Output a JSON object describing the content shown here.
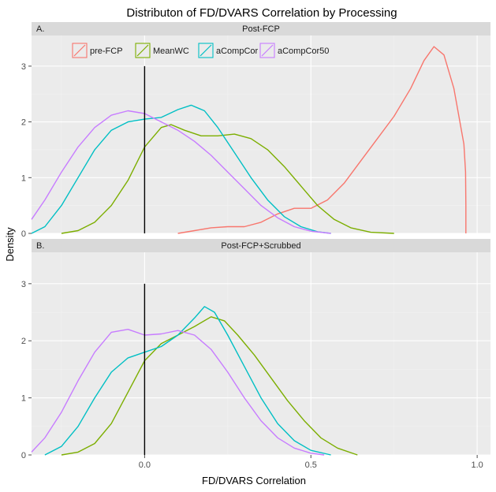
{
  "chart_data": {
    "type": "line",
    "title": "Distributon of FD/DVARS Correlation by Processing",
    "xlabel": "FD/DVARS Correlation",
    "ylabel": "Density",
    "xlim": [
      -0.34,
      1.04
    ],
    "ylim": [
      0,
      3.55
    ],
    "xticks": [
      0.0,
      0.5,
      1.0
    ],
    "xtick_labels": [
      "0.0",
      "0.5",
      "1.0"
    ],
    "yticks": [
      0,
      1,
      2,
      3
    ],
    "ytick_labels": [
      "0",
      "1",
      "2",
      "3"
    ],
    "vline_x": 0,
    "grid": true,
    "legend": {
      "placement": "top-left inside panel A",
      "entries": [
        "pre-FCP",
        "MeanWC",
        "aCompCor",
        "aCompCor50"
      ]
    },
    "colors": {
      "pre-FCP": "#F8766D",
      "MeanWC": "#7CAE00",
      "aCompCor": "#00BFC4",
      "aCompCor50": "#C77CFF",
      "panel_bg": "#EBEBEB",
      "strip_bg": "#D9D9D9",
      "grid": "#FFFFFF"
    },
    "panels": [
      {
        "letter": "A.",
        "label": "Post-FCP",
        "series": [
          {
            "name": "pre-FCP",
            "points": [
              [
                0.1,
                0
              ],
              [
                0.15,
                0.05
              ],
              [
                0.2,
                0.1
              ],
              [
                0.25,
                0.12
              ],
              [
                0.3,
                0.12
              ],
              [
                0.35,
                0.2
              ],
              [
                0.4,
                0.35
              ],
              [
                0.45,
                0.45
              ],
              [
                0.5,
                0.45
              ],
              [
                0.55,
                0.6
              ],
              [
                0.6,
                0.9
              ],
              [
                0.65,
                1.3
              ],
              [
                0.7,
                1.7
              ],
              [
                0.75,
                2.1
              ],
              [
                0.8,
                2.6
              ],
              [
                0.84,
                3.1
              ],
              [
                0.87,
                3.35
              ],
              [
                0.9,
                3.2
              ],
              [
                0.93,
                2.6
              ],
              [
                0.96,
                1.6
              ],
              [
                0.965,
                1.1
              ],
              [
                0.966,
                0.5
              ],
              [
                0.966,
                0
              ]
            ]
          },
          {
            "name": "MeanWC",
            "points": [
              [
                -0.25,
                0
              ],
              [
                -0.2,
                0.05
              ],
              [
                -0.15,
                0.2
              ],
              [
                -0.1,
                0.5
              ],
              [
                -0.05,
                0.95
              ],
              [
                0,
                1.55
              ],
              [
                0.05,
                1.9
              ],
              [
                0.08,
                1.95
              ],
              [
                0.12,
                1.85
              ],
              [
                0.17,
                1.75
              ],
              [
                0.22,
                1.75
              ],
              [
                0.27,
                1.78
              ],
              [
                0.32,
                1.7
              ],
              [
                0.37,
                1.5
              ],
              [
                0.42,
                1.2
              ],
              [
                0.47,
                0.85
              ],
              [
                0.52,
                0.5
              ],
              [
                0.57,
                0.25
              ],
              [
                0.62,
                0.1
              ],
              [
                0.68,
                0.02
              ],
              [
                0.75,
                0
              ]
            ]
          },
          {
            "name": "aCompCor",
            "points": [
              [
                -0.34,
                0
              ],
              [
                -0.3,
                0.12
              ],
              [
                -0.25,
                0.5
              ],
              [
                -0.2,
                1.0
              ],
              [
                -0.15,
                1.5
              ],
              [
                -0.1,
                1.85
              ],
              [
                -0.05,
                2.0
              ],
              [
                0,
                2.05
              ],
              [
                0.05,
                2.08
              ],
              [
                0.1,
                2.22
              ],
              [
                0.14,
                2.3
              ],
              [
                0.18,
                2.2
              ],
              [
                0.22,
                1.9
              ],
              [
                0.27,
                1.45
              ],
              [
                0.32,
                1.0
              ],
              [
                0.37,
                0.6
              ],
              [
                0.42,
                0.3
              ],
              [
                0.47,
                0.12
              ],
              [
                0.52,
                0.03
              ],
              [
                0.56,
                0
              ]
            ]
          },
          {
            "name": "aCompCor50",
            "points": [
              [
                -0.34,
                0.25
              ],
              [
                -0.3,
                0.6
              ],
              [
                -0.25,
                1.1
              ],
              [
                -0.2,
                1.55
              ],
              [
                -0.15,
                1.9
              ],
              [
                -0.1,
                2.12
              ],
              [
                -0.05,
                2.2
              ],
              [
                0,
                2.15
              ],
              [
                0.05,
                2.0
              ],
              [
                0.1,
                1.85
              ],
              [
                0.15,
                1.65
              ],
              [
                0.2,
                1.4
              ],
              [
                0.25,
                1.1
              ],
              [
                0.3,
                0.8
              ],
              [
                0.35,
                0.5
              ],
              [
                0.4,
                0.28
              ],
              [
                0.45,
                0.12
              ],
              [
                0.5,
                0.04
              ],
              [
                0.56,
                0
              ]
            ]
          }
        ]
      },
      {
        "letter": "B.",
        "label": "Post-FCP+Scrubbed",
        "series": [
          {
            "name": "MeanWC",
            "points": [
              [
                -0.25,
                0
              ],
              [
                -0.2,
                0.05
              ],
              [
                -0.15,
                0.2
              ],
              [
                -0.1,
                0.55
              ],
              [
                -0.05,
                1.1
              ],
              [
                0,
                1.65
              ],
              [
                0.05,
                1.95
              ],
              [
                0.1,
                2.1
              ],
              [
                0.15,
                2.25
              ],
              [
                0.2,
                2.42
              ],
              [
                0.24,
                2.35
              ],
              [
                0.28,
                2.1
              ],
              [
                0.33,
                1.75
              ],
              [
                0.38,
                1.35
              ],
              [
                0.43,
                0.95
              ],
              [
                0.48,
                0.6
              ],
              [
                0.53,
                0.3
              ],
              [
                0.58,
                0.12
              ],
              [
                0.64,
                0
              ]
            ]
          },
          {
            "name": "aCompCor",
            "points": [
              [
                -0.3,
                0
              ],
              [
                -0.25,
                0.15
              ],
              [
                -0.2,
                0.5
              ],
              [
                -0.15,
                1.0
              ],
              [
                -0.1,
                1.45
              ],
              [
                -0.05,
                1.7
              ],
              [
                0,
                1.8
              ],
              [
                0.05,
                1.9
              ],
              [
                0.1,
                2.1
              ],
              [
                0.15,
                2.4
              ],
              [
                0.18,
                2.6
              ],
              [
                0.21,
                2.5
              ],
              [
                0.25,
                2.1
              ],
              [
                0.3,
                1.55
              ],
              [
                0.35,
                1.0
              ],
              [
                0.4,
                0.55
              ],
              [
                0.45,
                0.25
              ],
              [
                0.5,
                0.08
              ],
              [
                0.56,
                0
              ]
            ]
          },
          {
            "name": "aCompCor50",
            "points": [
              [
                -0.34,
                0.05
              ],
              [
                -0.3,
                0.3
              ],
              [
                -0.25,
                0.75
              ],
              [
                -0.2,
                1.3
              ],
              [
                -0.15,
                1.8
              ],
              [
                -0.1,
                2.15
              ],
              [
                -0.05,
                2.2
              ],
              [
                0,
                2.1
              ],
              [
                0.05,
                2.12
              ],
              [
                0.1,
                2.18
              ],
              [
                0.15,
                2.1
              ],
              [
                0.2,
                1.85
              ],
              [
                0.25,
                1.45
              ],
              [
                0.3,
                1.0
              ],
              [
                0.35,
                0.6
              ],
              [
                0.4,
                0.3
              ],
              [
                0.45,
                0.12
              ],
              [
                0.5,
                0.03
              ],
              [
                0.54,
                0
              ]
            ]
          }
        ]
      }
    ]
  }
}
